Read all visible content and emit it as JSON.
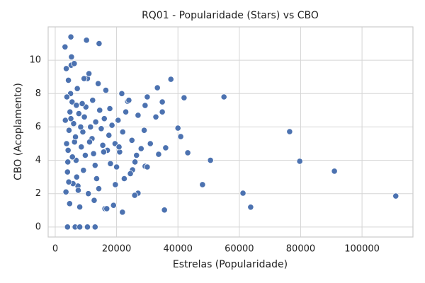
{
  "chart_data": {
    "type": "scatter",
    "title": "RQ01 - Popularidade (Stars) vs CBO",
    "xlabel": "Estrelas (Popularidade)",
    "ylabel": "CBO (Acoplamento)",
    "color": "#4c72b0",
    "grid": true,
    "xlim": [
      -2300,
      116600
    ],
    "ylim": [
      -0.6,
      12
    ],
    "xticks": [
      0,
      20000,
      40000,
      60000,
      80000,
      100000
    ],
    "yticks": [
      0,
      2,
      4,
      6,
      8,
      10
    ],
    "x": [
      111000,
      91000,
      79700,
      76400,
      63700,
      61200,
      55000,
      50600,
      48000,
      43200,
      42000,
      40900,
      40000,
      37700,
      35600,
      36000,
      34900,
      34900,
      33300,
      33700,
      32800,
      30000,
      29300,
      29300,
      27000,
      25900,
      25200,
      21900,
      19600,
      16200,
      23600,
      21700,
      14300,
      10200,
      5100,
      3200,
      7400,
      4000,
      6500,
      8000,
      10500,
      13000,
      3500,
      4000,
      4200,
      4500,
      4800,
      5000,
      5200,
      5500,
      6000,
      6300,
      6800,
      7000,
      7500,
      8000,
      8500,
      9000,
      9500,
      10000,
      10500,
      11000,
      11500,
      12000,
      12500,
      13000,
      13500,
      14000,
      14500,
      15000,
      15500,
      16000,
      16500,
      17000,
      17500,
      18000,
      18500,
      19000,
      19500,
      20000,
      20500,
      21000,
      22000,
      23000,
      24000,
      25000,
      26000,
      27000,
      28000,
      29000,
      30000,
      31000,
      3800,
      4300,
      5300,
      4700,
      5800,
      6200,
      7200,
      8300,
      9200,
      10800,
      12200,
      3300,
      3700,
      4100,
      4400,
      5600,
      6600,
      7700,
      8800,
      9800,
      11200,
      13200,
      15800,
      17800,
      20800,
      24500,
      26500,
      3600,
      5100,
      6900,
      9400,
      14200,
      16800,
      22500,
      12700
    ],
    "values": [
      1.86,
      3.35,
      3.94,
      5.72,
      1.19,
      2.03,
      7.8,
      4.0,
      2.54,
      4.45,
      7.75,
      5.42,
      5.93,
      8.86,
      1.02,
      4.75,
      7.5,
      6.9,
      8.35,
      4.36,
      6.6,
      7.8,
      7.29,
      3.64,
      2.03,
      1.9,
      3.43,
      0.89,
      2.54,
      1.1,
      7.54,
      8.0,
      11.0,
      11.2,
      11.4,
      10.8,
      2.46,
      0,
      0,
      0,
      0,
      0,
      2.1,
      3.3,
      4.6,
      5.8,
      6.9,
      8.0,
      9.7,
      7.5,
      6.2,
      5.1,
      4.0,
      3.0,
      2.2,
      1.2,
      4.8,
      5.7,
      6.6,
      7.2,
      8.9,
      9.2,
      6.0,
      5.3,
      4.4,
      3.7,
      2.9,
      8.6,
      7.0,
      5.9,
      4.9,
      6.5,
      8.2,
      4.6,
      5.5,
      3.8,
      6.1,
      1.3,
      5.0,
      3.6,
      6.4,
      4.5,
      5.7,
      6.9,
      7.6,
      5.2,
      3.9,
      6.7,
      4.7,
      5.8,
      3.6,
      5.0,
      7.8,
      8.8,
      10.2,
      1.4,
      2.6,
      9.8,
      8.3,
      6.0,
      3.4,
      2.0,
      7.6,
      6.4,
      5.0,
      3.9,
      2.7,
      4.2,
      5.4,
      6.8,
      7.4,
      4.3,
      5.1,
      6.3,
      4.5,
      7.1,
      4.8,
      3.2,
      4.3,
      9.5,
      6.5,
      7.3,
      8.9,
      2.3,
      1.1,
      2.9,
      1.6
    ]
  }
}
